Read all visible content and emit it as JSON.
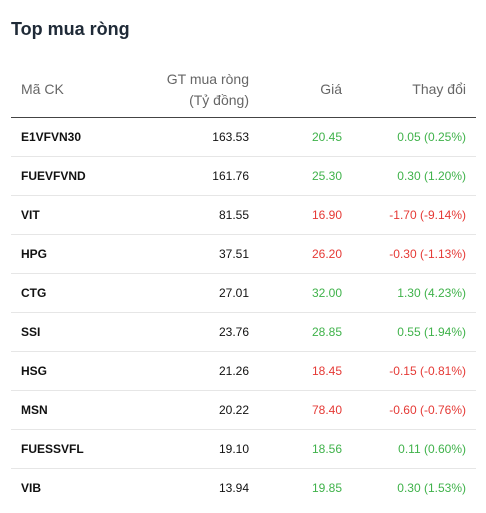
{
  "widget": {
    "title": "Top mua ròng",
    "columns": {
      "symbol": "Mã CK",
      "value_line1": "GT mua ròng",
      "value_line2": "(Tỷ đồng)",
      "price": "Giá",
      "change": "Thay đổi"
    },
    "colors": {
      "up": "#3fb24a",
      "down": "#e53935"
    },
    "rows": [
      {
        "symbol": "E1VFVN30",
        "value": "163.53",
        "price": "20.45",
        "change": "0.05 (0.25%)",
        "direction": "up"
      },
      {
        "symbol": "FUEVFVND",
        "value": "161.76",
        "price": "25.30",
        "change": "0.30 (1.20%)",
        "direction": "up"
      },
      {
        "symbol": "VIT",
        "value": "81.55",
        "price": "16.90",
        "change": "-1.70 (-9.14%)",
        "direction": "down"
      },
      {
        "symbol": "HPG",
        "value": "37.51",
        "price": "26.20",
        "change": "-0.30 (-1.13%)",
        "direction": "down"
      },
      {
        "symbol": "CTG",
        "value": "27.01",
        "price": "32.00",
        "change": "1.30 (4.23%)",
        "direction": "up"
      },
      {
        "symbol": "SSI",
        "value": "23.76",
        "price": "28.85",
        "change": "0.55 (1.94%)",
        "direction": "up"
      },
      {
        "symbol": "HSG",
        "value": "21.26",
        "price": "18.45",
        "change": "-0.15 (-0.81%)",
        "direction": "down"
      },
      {
        "symbol": "MSN",
        "value": "20.22",
        "price": "78.40",
        "change": "-0.60 (-0.76%)",
        "direction": "down"
      },
      {
        "symbol": "FUESSVFL",
        "value": "19.10",
        "price": "18.56",
        "change": "0.11 (0.60%)",
        "direction": "up"
      },
      {
        "symbol": "VIB",
        "value": "13.94",
        "price": "19.85",
        "change": "0.30 (1.53%)",
        "direction": "up"
      }
    ]
  }
}
